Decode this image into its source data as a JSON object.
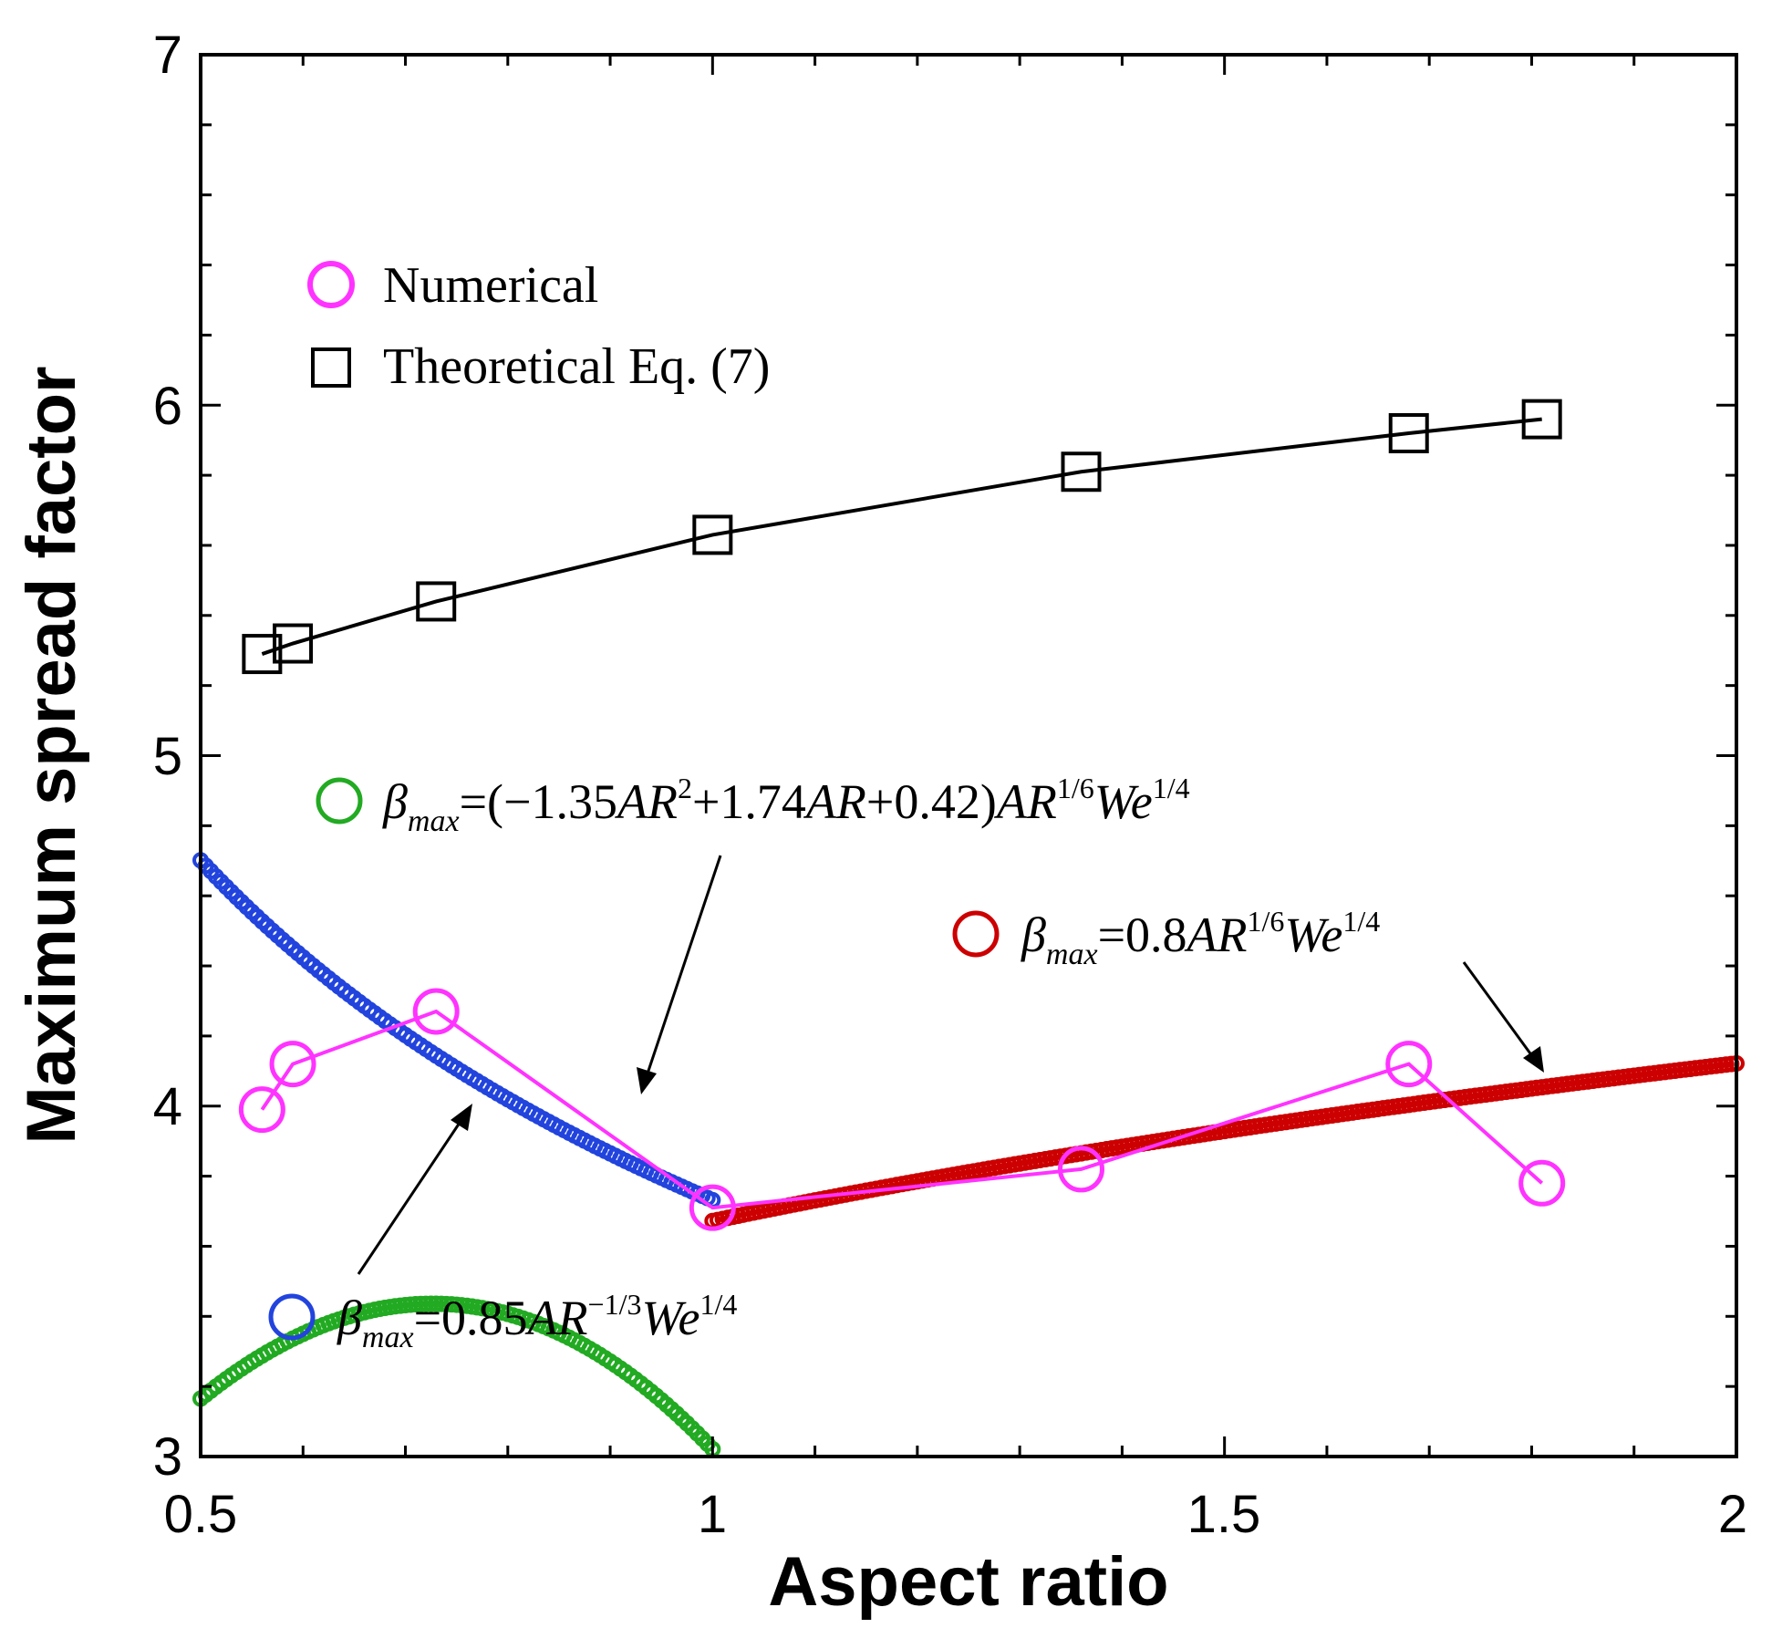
{
  "chart_data": {
    "type": "scatter",
    "xlabel": "Aspect ratio",
    "ylabel": "Maximum spread factor",
    "xlim": [
      0.5,
      2
    ],
    "ylim": [
      3,
      7
    ],
    "x_ticks": [
      "0.5",
      "1",
      "1.5",
      "2"
    ],
    "y_ticks": [
      "3",
      "4",
      "5",
      "6",
      "7"
    ],
    "legend": [
      {
        "name": "Numerical",
        "color": "#ff33ff",
        "marker": "circle"
      },
      {
        "name": "Theoretical Eq. (7)",
        "color": "#000000",
        "marker": "square"
      }
    ],
    "series": [
      {
        "name": "Numerical",
        "color": "#ff33ff",
        "marker": "circle",
        "line": true,
        "x": [
          0.56,
          0.59,
          0.73,
          1.0,
          1.36,
          1.68,
          1.81
        ],
        "y": [
          3.99,
          4.12,
          4.27,
          3.71,
          3.82,
          4.12,
          3.78
        ]
      },
      {
        "name": "Theoretical Eq. (7)",
        "color": "#000000",
        "marker": "square",
        "line": true,
        "x": [
          0.56,
          0.59,
          0.73,
          1.0,
          1.36,
          1.68,
          1.81
        ],
        "y": [
          5.29,
          5.32,
          5.44,
          5.63,
          5.81,
          5.92,
          5.96
        ]
      },
      {
        "name": "green-fit",
        "color": "#22aa22",
        "marker": "circle",
        "x_range": [
          0.5,
          1.0
        ],
        "formula_coeffs": {
          "a": -1.35,
          "b": 1.74,
          "c": 0.42,
          "ar_exp": 0.1667,
          "k": 3.73
        }
      },
      {
        "name": "blue-fit",
        "color": "#2244dd",
        "marker": "circle",
        "x_range": [
          0.5,
          1.0
        ],
        "formula_coeffs": {
          "c": 0.85,
          "ar_exp": -0.3333,
          "k": 4.39
        }
      },
      {
        "name": "red-fit",
        "color": "#cc0000",
        "marker": "circle",
        "x_range": [
          1.0,
          2.0
        ],
        "formula_coeffs": {
          "c": 0.8,
          "ar_exp": 0.1667,
          "k": 4.59
        }
      }
    ],
    "annotations": {
      "green": {
        "beta": "β",
        "sub": "max",
        "p1": "=(−1.35",
        "ar1": "AR",
        "sq": "2",
        "p2": "+1.74",
        "ar2": "AR",
        "p3": "+0.42)",
        "ar3": "AR",
        "e1": "1/6",
        "we": "We",
        "e2": "1/4"
      },
      "red": {
        "beta": "β",
        "sub": "max",
        "p1": "=0.8",
        "ar": "AR",
        "e1": "1/6",
        "we": "We",
        "e2": "1/4"
      },
      "blue": {
        "beta": "β",
        "sub": "max",
        "p1": "=0.85",
        "ar": "AR",
        "e1": "−1/3",
        "we": "We",
        "e2": "1/4"
      }
    }
  }
}
